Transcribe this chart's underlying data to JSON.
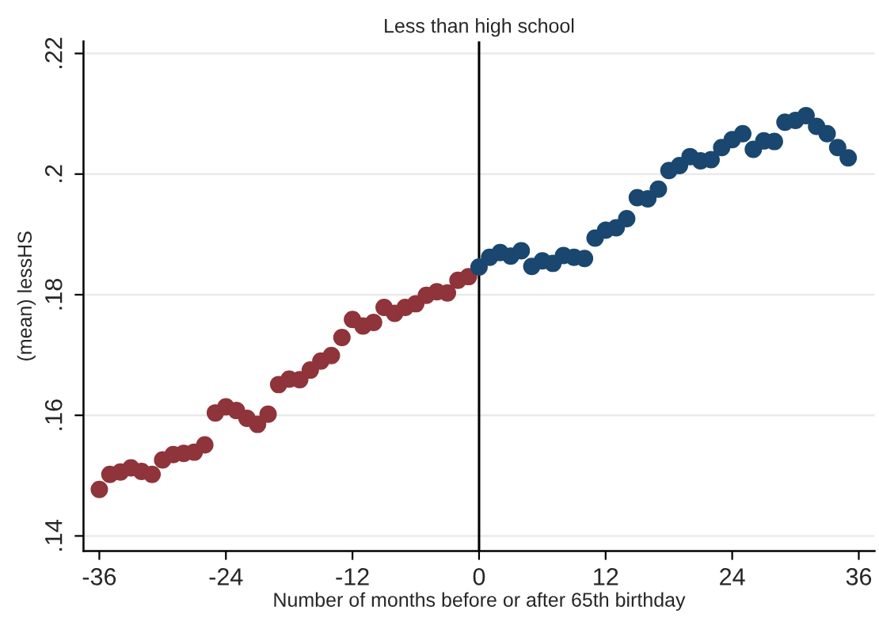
{
  "chart_data": {
    "type": "scatter",
    "title": "Less than high school",
    "xlabel": "Number of months before or after 65th birthday",
    "ylabel": "(mean) lessHS",
    "series": [
      {
        "color": "#8f343a",
        "x": [
          -36,
          -35,
          -34,
          -33,
          -32,
          -31,
          -30,
          -29,
          -28,
          -27,
          -26,
          -25,
          -24,
          -23,
          -22,
          -21,
          -20,
          -19,
          -18,
          -17,
          -16,
          -15,
          -14,
          -13,
          -12,
          -11,
          -10,
          -9,
          -8,
          -7,
          -6,
          -5,
          -4,
          -3,
          -2,
          -1
        ],
        "values": [
          0.1477,
          0.1502,
          0.1506,
          0.1513,
          0.1507,
          0.1502,
          0.1526,
          0.1535,
          0.1537,
          0.1539,
          0.1551,
          0.1604,
          0.1614,
          0.1608,
          0.1595,
          0.1585,
          0.1602,
          0.1651,
          0.166,
          0.1659,
          0.1675,
          0.169,
          0.1699,
          0.1729,
          0.1759,
          0.1748,
          0.1754,
          0.1779,
          0.1769,
          0.1779,
          0.1785,
          0.1799,
          0.1805,
          0.1803,
          0.1824,
          0.183
        ]
      },
      {
        "color": "#1a476f",
        "x": [
          0,
          1,
          2,
          3,
          4,
          5,
          6,
          7,
          8,
          9,
          10,
          11,
          12,
          13,
          14,
          15,
          16,
          17,
          18,
          19,
          20,
          21,
          22,
          23,
          24,
          25,
          26,
          27,
          28,
          29,
          30,
          31,
          32,
          33,
          34,
          35
        ],
        "values": [
          0.1846,
          0.1862,
          0.187,
          0.1864,
          0.1873,
          0.1847,
          0.1856,
          0.1852,
          0.1865,
          0.1862,
          0.186,
          0.1894,
          0.1907,
          0.1911,
          0.1926,
          0.1961,
          0.1959,
          0.1975,
          0.2006,
          0.2014,
          0.2029,
          0.2022,
          0.2024,
          0.2044,
          0.2057,
          0.2067,
          0.2041,
          0.2055,
          0.2054,
          0.2086,
          0.2089,
          0.2097,
          0.2079,
          0.2067,
          0.2044,
          0.2027
        ]
      }
    ],
    "xlim": [
      -37.5,
      37.5
    ],
    "xticks": [
      -36,
      -24,
      -12,
      0,
      12,
      24,
      36
    ],
    "ylim": [
      0.1375,
      0.222
    ],
    "yticks": [
      {
        "value": 0.14,
        "label": ".14"
      },
      {
        "value": 0.16,
        "label": ".16"
      },
      {
        "value": 0.18,
        "label": ".18"
      },
      {
        "value": 0.2,
        "label": ".2"
      },
      {
        "value": 0.22,
        "label": ".22"
      }
    ],
    "ref_lines": [
      {
        "axis": "x",
        "value": 0,
        "color": "#000000"
      }
    ],
    "grid": "y",
    "marker": "circle",
    "legend": false
  }
}
